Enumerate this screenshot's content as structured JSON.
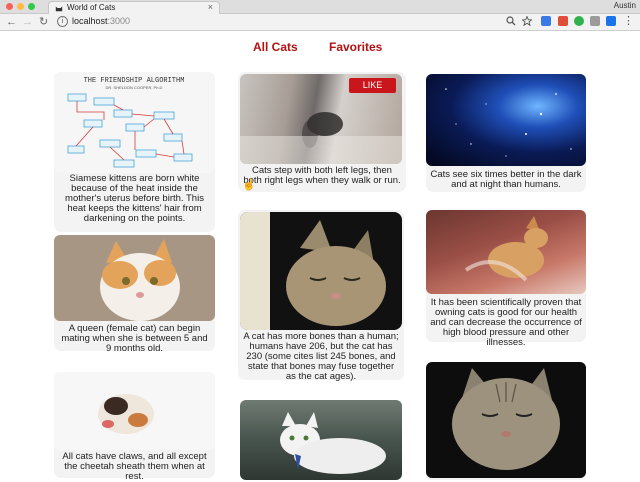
{
  "browser": {
    "tab_title": "World of Cats",
    "tab_close": "×",
    "profile_name": "Austin",
    "url_host": "localhost",
    "url_port": ":3000",
    "back": "←",
    "forward": "→",
    "reload": "↻",
    "menu": "⋮",
    "info": "i"
  },
  "nav": {
    "all_cats": "All Cats",
    "favorites": "Favorites"
  },
  "cards": {
    "c1": {
      "caption": "Siamese kittens are born white because of the heat inside the mother's uterus before birth. This heat keeps the kittens' hair from darkening on the points."
    },
    "c2": {
      "caption": "Cats step with both left legs, then both right legs when they walk or run.",
      "like": "LIKE"
    },
    "c3": {
      "caption": "Cats see six times better in the dark and at night than humans."
    },
    "c4": {
      "caption": "A queen (female cat) can begin mating when she is between 5 and 9 months old."
    },
    "c5": {
      "caption": "A cat has more bones than a human; humans have 206, but the cat has 230 (some cites list 245 bones, and state that bones may fuse together as the cat ages)."
    },
    "c6": {
      "caption": "It has been scientifically proven that owning cats is good for our health and can decrease the occurrence of high blood pressure and other illnesses."
    },
    "c7": {
      "caption": "All cats have claws, and all except the cheetah sheath them when at rest."
    },
    "c8": {},
    "c9": {}
  },
  "diagram_text": {
    "title": "THE FRIENDSHIP ALGORITHM",
    "author": "DR. SHELDON COOPER, Ph.D"
  },
  "colors": {
    "accent": "#b31212",
    "like": "#c8161c"
  }
}
